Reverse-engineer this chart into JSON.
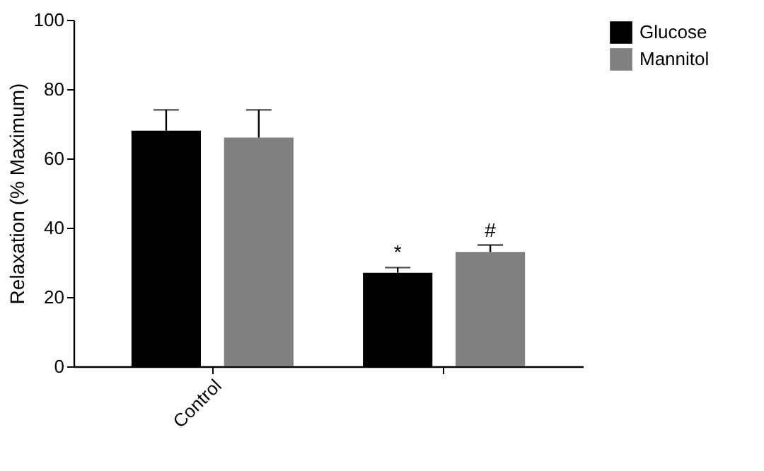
{
  "chart_data": {
    "type": "bar",
    "ylabel": "Relaxation (% Maximum)",
    "categories": [
      "Control",
      null
    ],
    "series": [
      {
        "name": "Glucose",
        "color": "#000000",
        "values": [
          68,
          27
        ],
        "errors": [
          [
            68,
            74
          ],
          [
            27,
            28.5
          ]
        ],
        "value_labels": [
          null,
          "*"
        ]
      },
      {
        "name": "Mannitol",
        "color": "#808080",
        "values": [
          66,
          33
        ],
        "errors": [
          [
            66,
            74
          ],
          [
            33,
            35
          ]
        ],
        "value_labels": [
          null,
          "#"
        ]
      }
    ],
    "ylim": [
      0,
      100
    ],
    "yticks": [
      0,
      20,
      40,
      60,
      80,
      100
    ],
    "grid": false,
    "legend": "top right"
  }
}
